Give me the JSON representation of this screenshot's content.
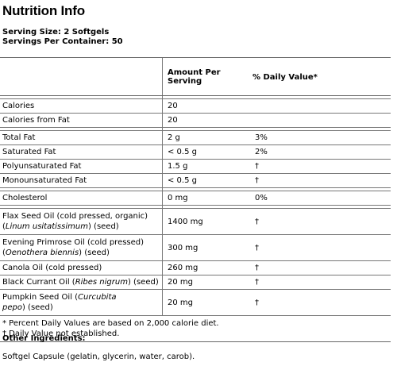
{
  "title": "Nutrition Info",
  "serving_size": "Serving Size: 2 Softgels",
  "servings_per_container": "Servings Per Container: 50",
  "table": {
    "col_amount": "Amount Per Serving",
    "col_dv": "% Daily Value*",
    "rows": [
      {
        "name": "Calories",
        "amount": "20",
        "dv": ""
      },
      {
        "name": "Calories from Fat",
        "amount": "20",
        "dv": ""
      },
      {
        "name": "Total Fat",
        "amount": "2 g",
        "dv": "3%"
      },
      {
        "name": "Saturated Fat",
        "amount": "< 0.5 g",
        "dv": "2%"
      },
      {
        "name": "Polyunsaturated Fat",
        "amount": "1.5 g",
        "dv": "†"
      },
      {
        "name": "Monounsaturated Fat",
        "amount": "< 0.5 g",
        "dv": "†"
      },
      {
        "name": "Cholesterol",
        "amount": "0 mg",
        "dv": "0%"
      },
      {
        "name": "Flax Seed Oil (cold pressed, organic)",
        "latin": "Linum usitatissimum",
        "suffix": " (seed)",
        "amount": "1400 mg",
        "dv": "†"
      },
      {
        "name": "Evening Primrose Oil (cold pressed)",
        "latin": "Oenothera biennis",
        "suffix": " (seed)",
        "amount": "300 mg",
        "dv": "†"
      },
      {
        "name": "Canola Oil (cold pressed)",
        "amount": "260 mg",
        "dv": "†"
      },
      {
        "name_pre": "Black Currant Oil (",
        "latin": "Ribes nigrum",
        "name_post": ")  (seed)",
        "amount": "20 mg",
        "dv": "†"
      },
      {
        "name_pre": "Pumpkin Seed Oil (",
        "latin": "Curcubita",
        "latin2": "pepo",
        "name_post": ")  (seed)",
        "amount": "20 mg",
        "dv": "†"
      }
    ],
    "footnote_1": "* Percent Daily Values are based on 2,000 calorie diet.",
    "footnote_2": "† Daily Value not established."
  },
  "other_ingredients_label": "Other Ingredients:",
  "other_ingredients": "Softgel Capsule (gelatin, glycerin, water, carob)."
}
